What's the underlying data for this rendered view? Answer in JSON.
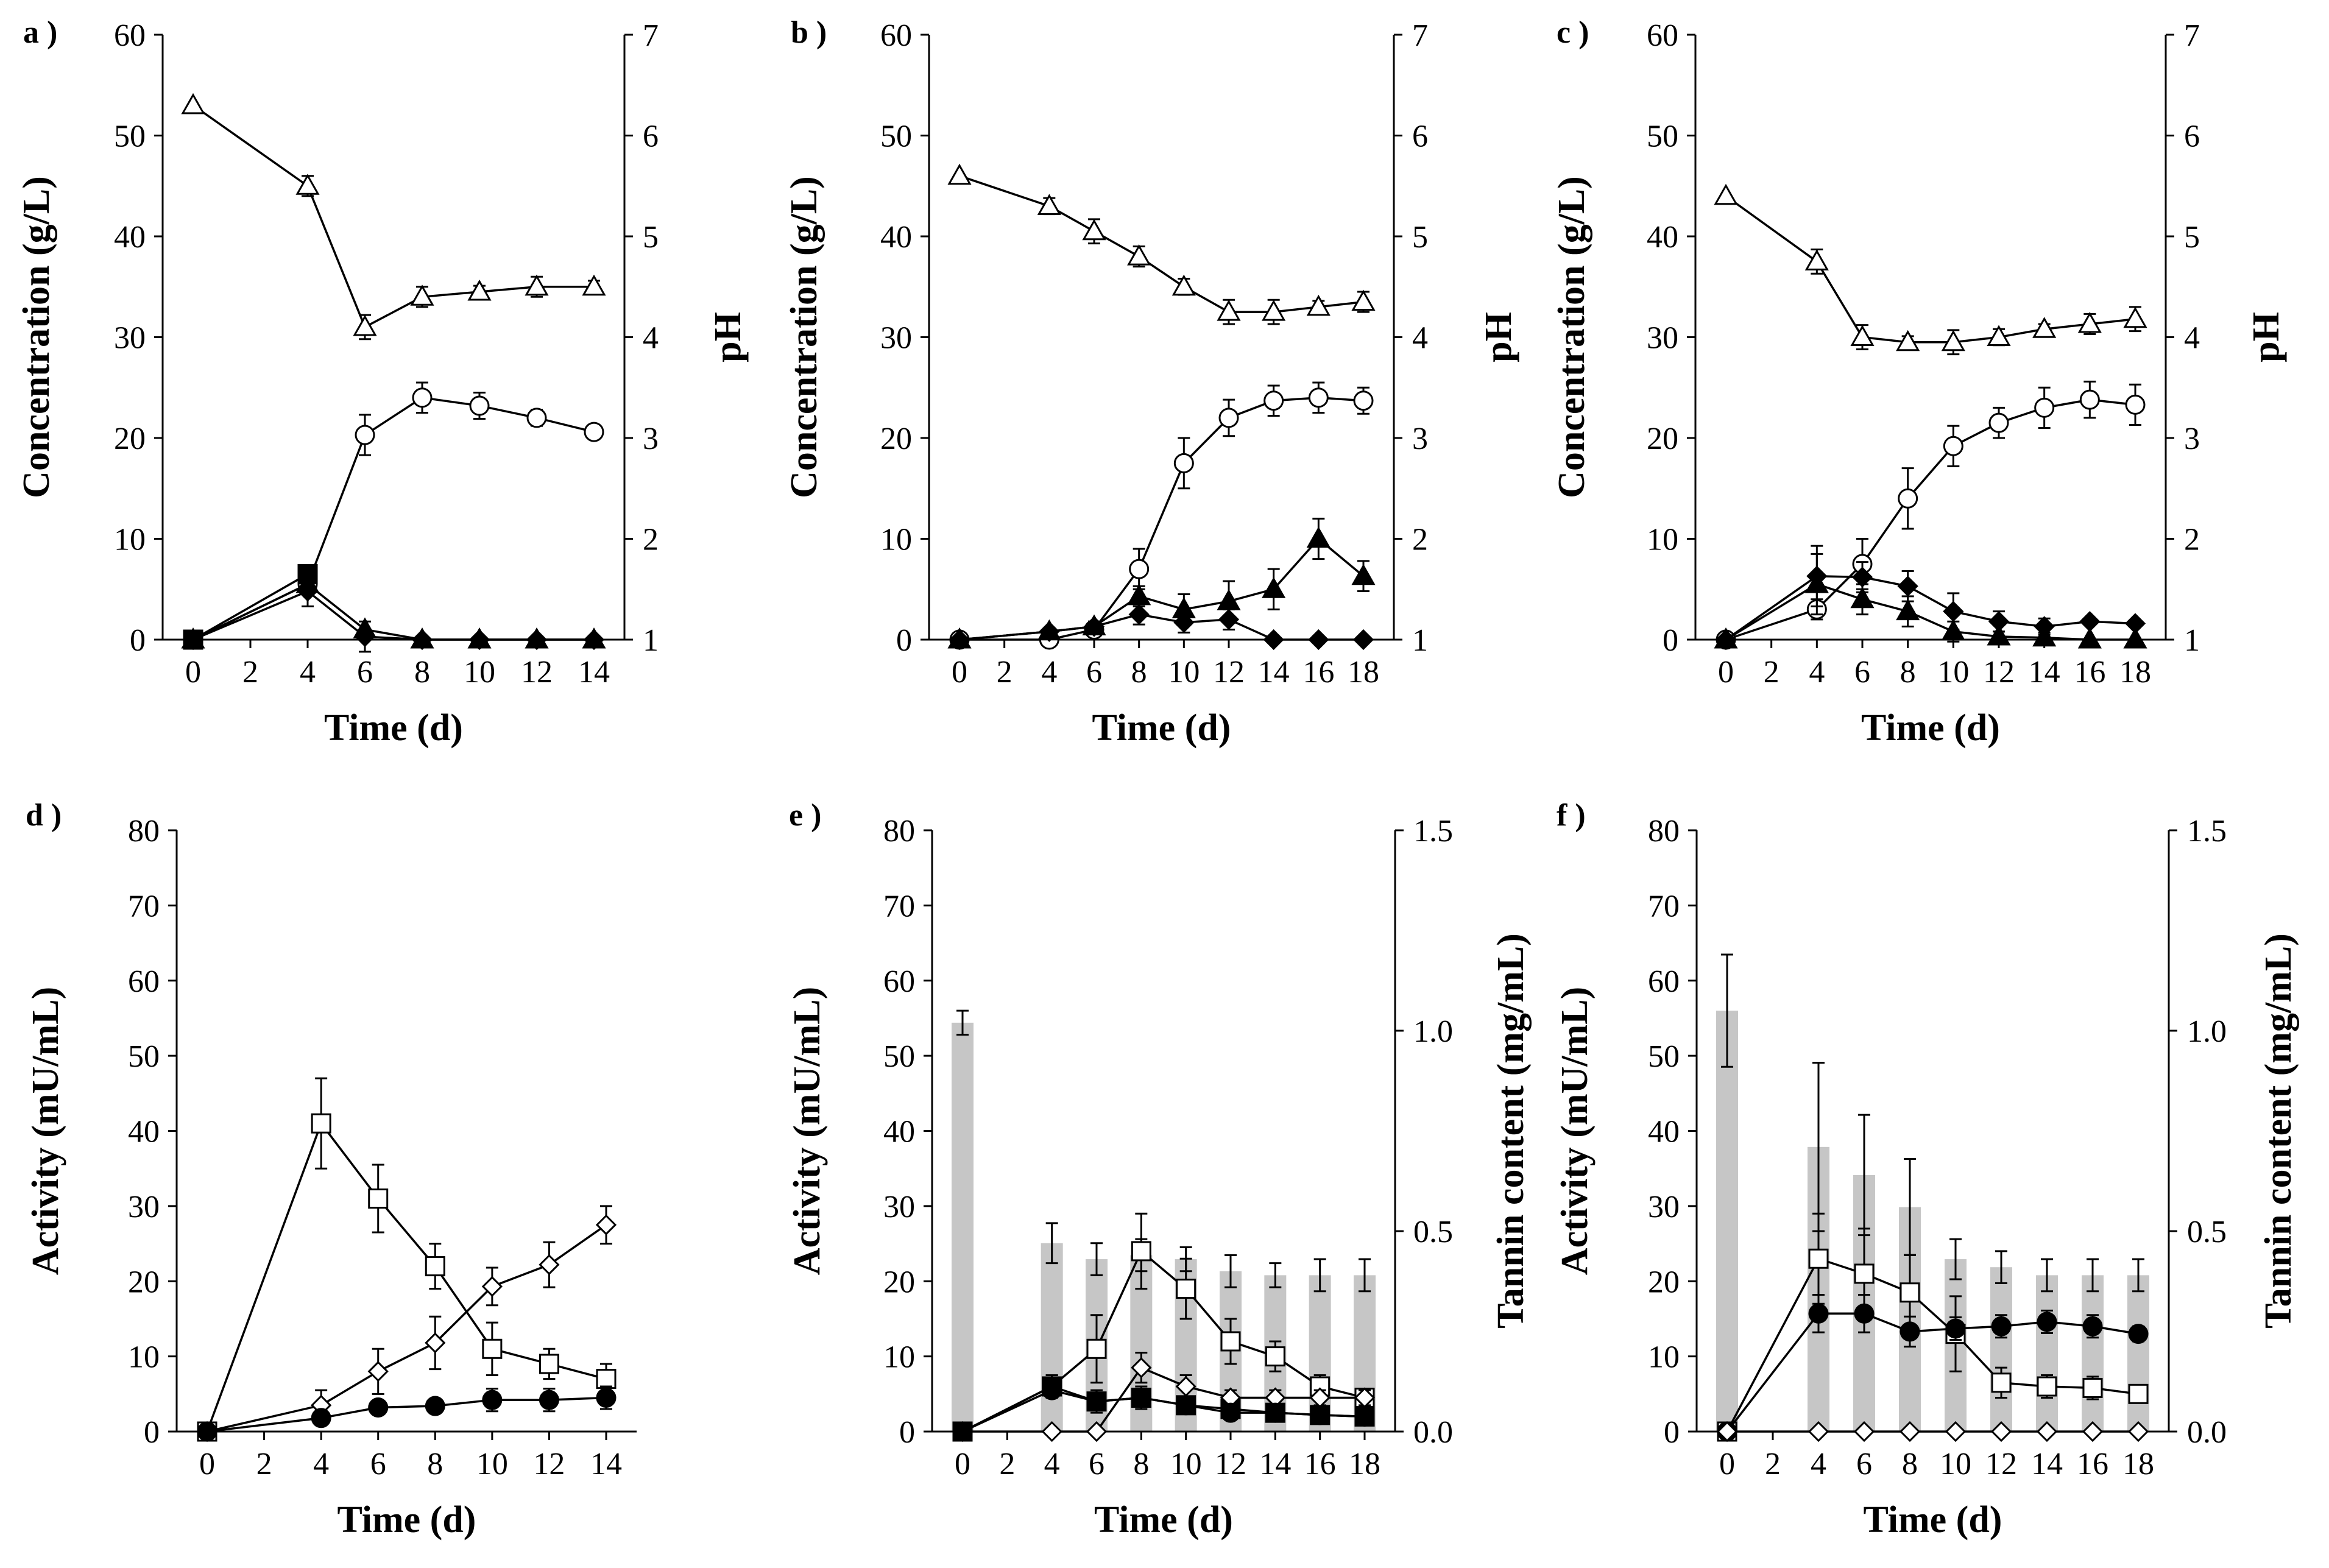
{
  "chart_data": [
    {
      "panel": "a )",
      "type": "line",
      "xlabel": "Time (d)",
      "ylabel": "Concentration (g/L)",
      "y2label": "pH",
      "xlim": [
        0,
        14
      ],
      "ylim": [
        0,
        60
      ],
      "y2lim": [
        1,
        7
      ],
      "x_ticks": [
        "0",
        "2",
        "4",
        "6",
        "8",
        "10",
        "12",
        "14"
      ],
      "y_ticks": [
        "0",
        "10",
        "20",
        "30",
        "40",
        "50",
        "60"
      ],
      "y2_ticks": [
        "1",
        "2",
        "3",
        "4",
        "5",
        "6",
        "7"
      ],
      "series": [
        {
          "name": "pH",
          "marker": "triangle-open",
          "axis": "right",
          "x": [
            0,
            4,
            6,
            8,
            10,
            12,
            14
          ],
          "values": [
            6.3,
            5.5,
            4.1,
            4.4,
            4.45,
            4.5,
            4.5
          ],
          "err": [
            0,
            0.1,
            0.12,
            0.1,
            0.06,
            0.1,
            0.06
          ]
        },
        {
          "name": "open circle",
          "marker": "circle-open",
          "axis": "left",
          "x": [
            0,
            4,
            6,
            8,
            10,
            12,
            14
          ],
          "values": [
            0,
            5.5,
            20.3,
            24,
            23.2,
            22,
            20.6
          ],
          "err": [
            0,
            1,
            2,
            1.5,
            1.3,
            0.8,
            0.5
          ]
        },
        {
          "name": "filled square",
          "marker": "square-filled",
          "axis": "left",
          "x": [
            0,
            4
          ],
          "values": [
            0,
            6.5
          ],
          "err": [
            0,
            0
          ]
        },
        {
          "name": "filled diamond",
          "marker": "diamond-filled",
          "axis": "left",
          "x": [
            0,
            4,
            6,
            8,
            10,
            12,
            14
          ],
          "values": [
            0,
            4.8,
            0.3,
            0,
            0,
            0,
            0
          ],
          "err": [
            0,
            1.5,
            1.5,
            0,
            0,
            0,
            0
          ]
        },
        {
          "name": "filled triangle",
          "marker": "triangle-filled",
          "axis": "left",
          "x": [
            0,
            4,
            6,
            8,
            10,
            12,
            14
          ],
          "values": [
            0,
            5.5,
            1,
            0,
            0,
            0,
            0
          ],
          "err": [
            0,
            0,
            0,
            0,
            0,
            0,
            0
          ]
        }
      ]
    },
    {
      "panel": "b )",
      "type": "line",
      "xlabel": "Time (d)",
      "ylabel": "Concentration (g/L)",
      "y2label": "pH",
      "xlim": [
        0,
        18
      ],
      "ylim": [
        0,
        60
      ],
      "y2lim": [
        1,
        7
      ],
      "x_ticks": [
        "0",
        "2",
        "4",
        "6",
        "8",
        "10",
        "12",
        "14",
        "16",
        "18"
      ],
      "y_ticks": [
        "0",
        "10",
        "20",
        "30",
        "40",
        "50",
        "60"
      ],
      "y2_ticks": [
        "1",
        "2",
        "3",
        "4",
        "5",
        "6",
        "7"
      ],
      "series": [
        {
          "name": "pH",
          "marker": "triangle-open",
          "axis": "right",
          "x": [
            0,
            4,
            6,
            8,
            10,
            12,
            14,
            16,
            18
          ],
          "values": [
            5.6,
            5.3,
            5.05,
            4.8,
            4.5,
            4.25,
            4.25,
            4.3,
            4.35
          ],
          "err": [
            0,
            0.08,
            0.12,
            0.1,
            0.08,
            0.12,
            0.12,
            0.06,
            0.1
          ]
        },
        {
          "name": "open circle",
          "marker": "circle-open",
          "axis": "left",
          "x": [
            0,
            4,
            6,
            8,
            10,
            12,
            14,
            16,
            18
          ],
          "values": [
            0,
            0,
            1,
            7,
            17.5,
            22,
            23.7,
            24,
            23.7
          ],
          "err": [
            0,
            0,
            0.5,
            2,
            2.5,
            1.8,
            1.5,
            1.5,
            1.3
          ]
        },
        {
          "name": "filled triangle",
          "marker": "triangle-filled",
          "axis": "left",
          "x": [
            0,
            4,
            6,
            8,
            10,
            12,
            14,
            16,
            18
          ],
          "values": [
            0,
            0.8,
            1.3,
            4.3,
            3,
            3.8,
            5,
            10,
            6.3
          ],
          "err": [
            0,
            0,
            0.5,
            1,
            1.5,
            2,
            2,
            2,
            1.5
          ]
        },
        {
          "name": "filled diamond",
          "marker": "diamond-filled",
          "axis": "left",
          "x": [
            0,
            4,
            6,
            8,
            10,
            12,
            14,
            16,
            18
          ],
          "values": [
            0,
            0.8,
            1.3,
            2.5,
            1.7,
            2,
            0,
            0,
            0
          ],
          "err": [
            0,
            0,
            0.5,
            1,
            1,
            1,
            0,
            0,
            0
          ]
        }
      ]
    },
    {
      "panel": "c )",
      "type": "line",
      "xlabel": "Time (d)",
      "ylabel": "Concentration (g/L)",
      "y2label": "pH",
      "xlim": [
        0,
        18
      ],
      "ylim": [
        0,
        60
      ],
      "y2lim": [
        1,
        7
      ],
      "x_ticks": [
        "0",
        "2",
        "4",
        "6",
        "8",
        "10",
        "12",
        "14",
        "16",
        "18"
      ],
      "y_ticks": [
        "0",
        "10",
        "20",
        "30",
        "40",
        "50",
        "60"
      ],
      "y2_ticks": [
        "1",
        "2",
        "3",
        "4",
        "5",
        "6",
        "7"
      ],
      "series": [
        {
          "name": "pH",
          "marker": "triangle-open",
          "axis": "right",
          "x": [
            0,
            4,
            6,
            8,
            10,
            12,
            14,
            16,
            18
          ],
          "values": [
            5.4,
            4.75,
            4,
            3.95,
            3.95,
            4,
            4.08,
            4.13,
            4.18
          ],
          "err": [
            0,
            0.12,
            0.12,
            0.06,
            0.12,
            0.08,
            0.05,
            0.1,
            0.12
          ]
        },
        {
          "name": "open circle",
          "marker": "circle-open",
          "axis": "left",
          "x": [
            0,
            4,
            6,
            8,
            10,
            12,
            14,
            16,
            18
          ],
          "values": [
            0,
            3,
            7.5,
            14,
            19.2,
            21.5,
            23,
            23.8,
            23.3
          ],
          "err": [
            0,
            1,
            2.5,
            3,
            2,
            1.5,
            2,
            1.8,
            2
          ]
        },
        {
          "name": "filled diamond",
          "marker": "diamond-filled",
          "axis": "left",
          "x": [
            0,
            4,
            6,
            8,
            10,
            12,
            14,
            16,
            18
          ],
          "values": [
            0,
            6.3,
            6.2,
            5.3,
            2.8,
            1.8,
            1.3,
            1.8,
            1.6
          ],
          "err": [
            0,
            3,
            1.5,
            1.5,
            1.8,
            1,
            0.8,
            0.3,
            0.3
          ]
        },
        {
          "name": "filled triangle",
          "marker": "triangle-filled",
          "axis": "left",
          "x": [
            0,
            4,
            6,
            8,
            10,
            12,
            14,
            16,
            18
          ],
          "values": [
            0,
            5.5,
            4,
            2.8,
            0.8,
            0.3,
            0.2,
            0,
            0
          ],
          "err": [
            0,
            3,
            1.5,
            1.5,
            1,
            0.5,
            0.5,
            0,
            0
          ]
        }
      ]
    },
    {
      "panel": "d )",
      "type": "line",
      "xlabel": "Time (d)",
      "ylabel": "Activity (mU/mL)",
      "y2label": "",
      "xlim": [
        0,
        14
      ],
      "ylim": [
        0,
        80
      ],
      "x_ticks": [
        "0",
        "2",
        "4",
        "6",
        "8",
        "10",
        "12",
        "14"
      ],
      "y_ticks": [
        "0",
        "10",
        "20",
        "30",
        "40",
        "50",
        "60",
        "70",
        "80"
      ],
      "y2_ticks": [],
      "series": [
        {
          "name": "open square",
          "marker": "square-open",
          "axis": "left",
          "x": [
            0,
            4,
            6,
            8,
            10,
            12,
            14
          ],
          "values": [
            0,
            41,
            31,
            22,
            11,
            9,
            7
          ],
          "err": [
            0,
            6,
            4.5,
            3,
            3.5,
            2,
            2
          ]
        },
        {
          "name": "open diamond",
          "marker": "diamond-open",
          "axis": "left",
          "x": [
            0,
            4,
            6,
            8,
            10,
            12,
            14
          ],
          "values": [
            0,
            3.5,
            8,
            11.8,
            19.3,
            22.2,
            27.5
          ],
          "err": [
            0,
            2,
            3,
            3.5,
            2.5,
            3,
            2.5
          ]
        },
        {
          "name": "filled circle",
          "marker": "circle-filled",
          "axis": "left",
          "x": [
            0,
            4,
            6,
            8,
            10,
            12,
            14
          ],
          "values": [
            0,
            1.8,
            3.2,
            3.4,
            4.2,
            4.2,
            4.5
          ],
          "err": [
            0,
            0,
            0.6,
            0.8,
            1.5,
            1.5,
            1.5
          ]
        }
      ]
    },
    {
      "panel": "e )",
      "type": "line+bar",
      "xlabel": "Time (d)",
      "ylabel": "Activity (mU/mL)",
      "y2label": "Tannin content (mg/mL)",
      "xlim": [
        0,
        18
      ],
      "ylim": [
        0,
        80
      ],
      "y2lim": [
        0,
        1.5
      ],
      "x_ticks": [
        "0",
        "2",
        "4",
        "6",
        "8",
        "10",
        "12",
        "14",
        "16",
        "18"
      ],
      "y_ticks": [
        "0",
        "10",
        "20",
        "30",
        "40",
        "50",
        "60",
        "70",
        "80"
      ],
      "y2_ticks": [
        "0.0",
        "0.5",
        "1.0",
        "1.5"
      ],
      "bars": {
        "name": "Tannin content",
        "x": [
          0,
          4,
          6,
          8,
          10,
          12,
          14,
          16,
          18
        ],
        "values": [
          1.02,
          0.47,
          0.43,
          0.44,
          0.43,
          0.4,
          0.39,
          0.39,
          0.39
        ],
        "err": [
          0.03,
          0.05,
          0.04,
          0.04,
          0.03,
          0.04,
          0.03,
          0.04,
          0.04
        ]
      },
      "series": [
        {
          "name": "open square",
          "marker": "square-open",
          "axis": "left",
          "x": [
            0,
            4,
            6,
            8,
            10,
            12,
            14,
            16,
            18
          ],
          "values": [
            0,
            6,
            11,
            24,
            19,
            12,
            10,
            6,
            4.5
          ],
          "err": [
            0,
            1.5,
            4.5,
            5,
            4,
            3,
            2,
            1.5,
            1
          ]
        },
        {
          "name": "filled square",
          "marker": "square-filled",
          "axis": "left",
          "x": [
            0,
            4,
            6,
            8,
            10,
            12,
            14,
            16,
            18
          ],
          "values": [
            0,
            6,
            4,
            4.5,
            3.5,
            3,
            2.5,
            2.2,
            2
          ],
          "err": [
            0,
            1.5,
            1.5,
            1.5,
            1,
            1,
            0.5,
            0.5,
            0.5
          ]
        },
        {
          "name": "open diamond",
          "marker": "diamond-open",
          "axis": "left",
          "x": [
            0,
            4,
            6,
            8,
            10,
            12,
            14,
            16,
            18
          ],
          "values": [
            0,
            0,
            0,
            8.5,
            6,
            4.5,
            4.5,
            4.5,
            4.5
          ],
          "err": [
            0,
            0,
            0,
            2,
            1.5,
            1,
            1,
            1,
            1
          ]
        },
        {
          "name": "filled circle",
          "marker": "circle-filled",
          "axis": "left",
          "x": [
            0,
            4,
            6,
            8,
            10,
            12,
            14,
            16,
            18
          ],
          "values": [
            0,
            5.5,
            4,
            4.5,
            3.5,
            2.5,
            2.5,
            2.2,
            2
          ],
          "err": [
            0,
            1,
            1,
            1,
            1,
            0.5,
            0.5,
            0.5,
            0.5
          ]
        }
      ]
    },
    {
      "panel": "f )",
      "type": "line+bar",
      "xlabel": "Time (d)",
      "ylabel": "Activity (mU/mL)",
      "y2label": "Tannin content (mg/mL)",
      "xlim": [
        0,
        18
      ],
      "ylim": [
        0,
        80
      ],
      "y2lim": [
        0,
        1.5
      ],
      "x_ticks": [
        "0",
        "2",
        "4",
        "6",
        "8",
        "10",
        "12",
        "14",
        "16",
        "18"
      ],
      "y_ticks": [
        "0",
        "10",
        "20",
        "30",
        "40",
        "50",
        "60",
        "70",
        "80"
      ],
      "y2_ticks": [
        "0.0",
        "0.5",
        "1.0",
        "1.5"
      ],
      "bars": {
        "name": "Tannin content",
        "x": [
          0,
          4,
          6,
          8,
          10,
          12,
          14,
          16,
          18
        ],
        "values": [
          1.05,
          0.71,
          0.64,
          0.56,
          0.43,
          0.41,
          0.39,
          0.39,
          0.39
        ],
        "err": [
          0.14,
          0.21,
          0.15,
          0.12,
          0.05,
          0.04,
          0.04,
          0.04,
          0.04
        ]
      },
      "series": [
        {
          "name": "open square",
          "marker": "square-open",
          "axis": "left",
          "x": [
            0,
            4,
            6,
            8,
            10,
            12,
            14,
            16,
            18
          ],
          "values": [
            0,
            23,
            21,
            18.5,
            13,
            6.5,
            6,
            5.8,
            5
          ],
          "err": [
            0,
            6,
            6,
            5,
            5,
            2,
            1.5,
            1.5,
            1
          ]
        },
        {
          "name": "filled circle",
          "marker": "circle-filled",
          "axis": "left",
          "x": [
            0,
            4,
            6,
            8,
            10,
            12,
            14,
            16,
            18
          ],
          "values": [
            0,
            15.7,
            15.7,
            13.3,
            13.7,
            14,
            14.6,
            14,
            13
          ],
          "err": [
            0,
            2.5,
            2.5,
            2,
            1.5,
            1.5,
            1.5,
            1.5,
            1
          ]
        },
        {
          "name": "open diamond",
          "marker": "diamond-open",
          "axis": "left",
          "x": [
            0,
            4,
            6,
            8,
            10,
            12,
            14,
            16,
            18
          ],
          "values": [
            0,
            0,
            0,
            0,
            0,
            0,
            0,
            0,
            0
          ],
          "err": [
            0,
            0,
            0,
            0,
            0,
            0,
            0,
            0,
            0
          ]
        }
      ]
    }
  ]
}
